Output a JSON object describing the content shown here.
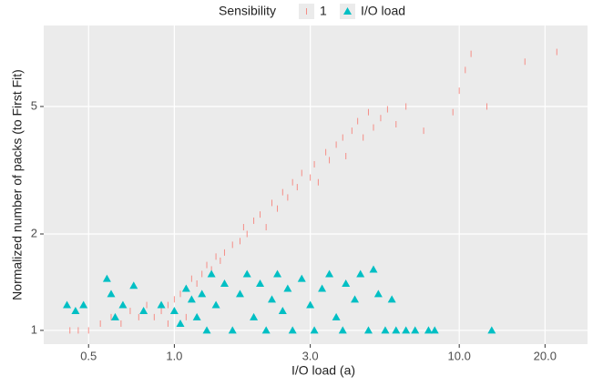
{
  "chart_data": {
    "type": "scatter",
    "legend_title": "Sensibility",
    "xlabel": "I/O load (a)",
    "ylabel": "Normalized number of packs (to First Fit)",
    "log_x": true,
    "log_y": true,
    "grid": true,
    "legend_position": "top",
    "xlim": [
      0.348,
      28.2
    ],
    "ylim": [
      0.906,
      8.95
    ],
    "xticks": [
      {
        "value": 0.5,
        "label": "0.5"
      },
      {
        "value": 1,
        "label": "1.0"
      },
      {
        "value": 3,
        "label": "3.0"
      },
      {
        "value": 10,
        "label": "10.0"
      },
      {
        "value": 20,
        "label": "20.0"
      }
    ],
    "yticks": [
      1,
      2,
      5
    ],
    "series": [
      {
        "name": "1",
        "color": "#f8766d",
        "marker": "vline",
        "x": [
          0.43,
          0.46,
          0.5,
          0.55,
          0.6,
          0.65,
          0.7,
          0.75,
          0.8,
          0.85,
          0.9,
          0.95,
          0.95,
          1.0,
          1.05,
          1.1,
          1.1,
          1.15,
          1.2,
          1.25,
          1.3,
          1.35,
          1.4,
          1.45,
          1.5,
          1.6,
          1.7,
          1.75,
          1.8,
          1.9,
          2.0,
          2.1,
          2.2,
          2.3,
          2.4,
          2.5,
          2.6,
          2.7,
          2.8,
          3.0,
          3.1,
          3.2,
          3.4,
          3.5,
          3.7,
          3.9,
          4.0,
          4.2,
          4.4,
          4.6,
          4.8,
          5.0,
          5.3,
          5.6,
          6.0,
          6.5,
          7.5,
          9.5,
          10.0,
          10.5,
          11.0,
          12.5,
          17.0,
          22.0
        ],
        "values": [
          1.0,
          1.0,
          1.0,
          1.05,
          1.1,
          1.05,
          1.15,
          1.1,
          1.2,
          1.1,
          1.15,
          1.2,
          1.05,
          1.25,
          1.3,
          1.35,
          1.1,
          1.45,
          1.4,
          1.5,
          1.6,
          1.55,
          1.7,
          1.65,
          1.75,
          1.85,
          1.9,
          2.1,
          2.0,
          2.2,
          2.3,
          2.1,
          2.5,
          2.4,
          2.7,
          2.6,
          2.9,
          2.8,
          3.1,
          3.0,
          3.3,
          2.9,
          3.6,
          3.4,
          3.8,
          4.0,
          3.5,
          4.2,
          4.5,
          4.0,
          4.8,
          4.3,
          4.6,
          4.9,
          4.4,
          5.0,
          4.2,
          4.8,
          5.6,
          6.5,
          7.3,
          5.0,
          6.9,
          7.4
        ]
      },
      {
        "name": "I/O load",
        "color": "#00bfc4",
        "marker": "triangle",
        "x": [
          0.42,
          0.45,
          0.48,
          0.58,
          0.6,
          0.62,
          0.66,
          0.72,
          0.78,
          0.9,
          1.0,
          1.05,
          1.1,
          1.15,
          1.2,
          1.25,
          1.3,
          1.35,
          1.4,
          1.5,
          1.6,
          1.7,
          1.8,
          1.9,
          2.0,
          2.1,
          2.2,
          2.3,
          2.4,
          2.5,
          2.6,
          2.8,
          3.0,
          3.1,
          3.3,
          3.5,
          3.7,
          3.9,
          4.0,
          4.3,
          4.5,
          4.8,
          5.0,
          5.2,
          5.5,
          5.8,
          6.0,
          6.5,
          7.0,
          7.8,
          8.2,
          13.0
        ],
        "values": [
          1.2,
          1.15,
          1.2,
          1.45,
          1.3,
          1.1,
          1.2,
          1.38,
          1.15,
          1.2,
          1.15,
          1.05,
          1.35,
          1.25,
          1.1,
          1.3,
          1.0,
          1.5,
          1.2,
          1.4,
          1.0,
          1.3,
          1.5,
          1.1,
          1.4,
          1.0,
          1.25,
          1.5,
          1.15,
          1.35,
          1.0,
          1.45,
          1.2,
          1.0,
          1.35,
          1.5,
          1.1,
          1.0,
          1.4,
          1.25,
          1.5,
          1.0,
          1.55,
          1.3,
          1.0,
          1.25,
          1.0,
          1.0,
          1.0,
          1.0,
          1.0,
          1.0
        ]
      }
    ]
  }
}
